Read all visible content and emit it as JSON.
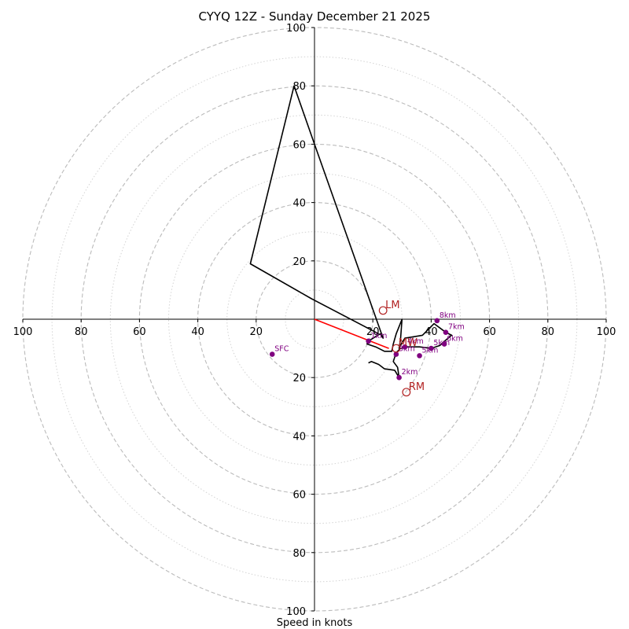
{
  "chart_data": {
    "type": "hodograph",
    "title": "CYYQ 12Z - Sunday December 21 2025",
    "xlabel": "Speed in knots",
    "max_speed": 100,
    "ring_step": 10,
    "tick_step": 20,
    "x_tick_labels": [
      "100",
      "80",
      "60",
      "40",
      "20",
      "20",
      "40",
      "60",
      "80",
      "100"
    ],
    "y_tick_labels": [
      "100",
      "80",
      "60",
      "40",
      "20",
      "20",
      "40",
      "60",
      "80",
      "100"
    ],
    "hodograph": {
      "color": "#000000",
      "points": [
        [
          18.5,
          -15.0
        ],
        [
          19.5,
          -14.5
        ],
        [
          22.0,
          -15.5
        ],
        [
          24.0,
          -17.0
        ],
        [
          27.5,
          -17.5
        ],
        [
          29.0,
          -20.0
        ],
        [
          28.5,
          -16.5
        ],
        [
          27.0,
          -14.5
        ],
        [
          28.0,
          -11.5
        ],
        [
          29.5,
          -10.0
        ],
        [
          32.0,
          -9.5
        ],
        [
          36.0,
          -9.5
        ],
        [
          40.0,
          -10.0
        ],
        [
          43.0,
          -9.0
        ],
        [
          44.0,
          -8.0
        ],
        [
          47.0,
          -5.5
        ],
        [
          45.0,
          -4.5
        ],
        [
          41.0,
          -1.5
        ],
        [
          37.0,
          -5.5
        ],
        [
          34.0,
          -6.0
        ],
        [
          31.0,
          -6.5
        ],
        [
          30.0,
          -8.0
        ],
        [
          29.0,
          -10.0
        ],
        [
          29.5,
          -7.0
        ],
        [
          30.0,
          0.0
        ],
        [
          28.0,
          -5.0
        ],
        [
          27.0,
          -8.5
        ],
        [
          26.5,
          -11.0
        ],
        [
          24.0,
          -11.0
        ],
        [
          21.0,
          -9.5
        ],
        [
          18.0,
          -8.5
        ],
        [
          18.5,
          -7.5
        ],
        [
          22.5,
          -5.0
        ],
        [
          23.5,
          -6.5
        ],
        [
          0.0,
          60.0
        ],
        [
          -7.0,
          80.0
        ],
        [
          -22.0,
          19.0
        ],
        [
          -1.0,
          7.0
        ],
        [
          22.0,
          -5.0
        ]
      ]
    },
    "height_markers": [
      {
        "label": "SFC",
        "u": -14.5,
        "v": -12.0
      },
      {
        "label": "1km",
        "u": 18.5,
        "v": -7.5
      },
      {
        "label": "2km",
        "u": 29.0,
        "v": -20.0
      },
      {
        "label": "3km",
        "u": 28.0,
        "v": -12.0
      },
      {
        "label": "4km",
        "u": 31.0,
        "v": -9.5
      },
      {
        "label": "5km",
        "u": 36.0,
        "v": -12.5
      },
      {
        "label": "5km",
        "u": 40.0,
        "v": -10.0
      },
      {
        "label": "6km",
        "u": 44.5,
        "v": -8.5
      },
      {
        "label": "7km",
        "u": 45.0,
        "v": -4.5
      },
      {
        "label": "8km",
        "u": 42.0,
        "v": -0.5
      }
    ],
    "storm_motions": [
      {
        "label": "LM",
        "u": 23.5,
        "v": 3.0
      },
      {
        "label": "RM",
        "u": 31.5,
        "v": -25.0
      },
      {
        "label": "MW",
        "u": 28.0,
        "v": -10.0
      }
    ],
    "mean_wind_vector": {
      "u": 25.5,
      "v": -10.0,
      "color": "#ff0000"
    },
    "colors": {
      "marker": "#800080",
      "storm_motion": "#b22222",
      "ring_dashed": "#bbbbbb",
      "ring_dotted": "#d3d3d3"
    }
  }
}
